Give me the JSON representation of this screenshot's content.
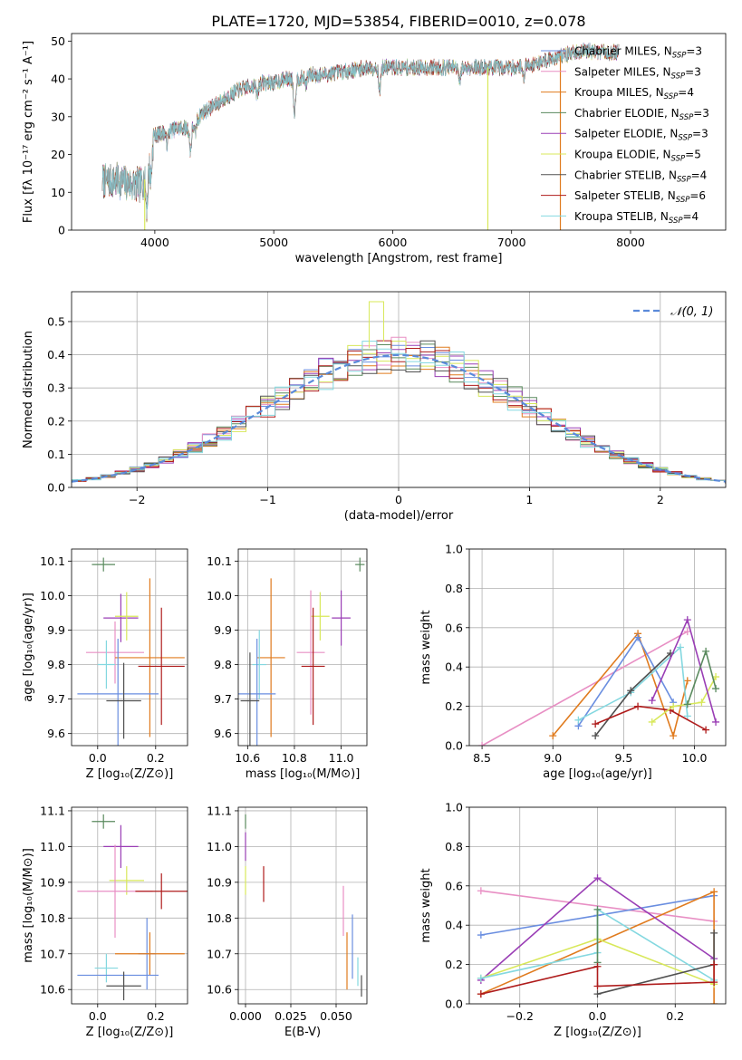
{
  "figure": {
    "title": "PLATE=1720, MJD=53854, FIBERID=0010, z=0.078"
  },
  "colors": {
    "Chabrier MILES": "#6A8EE0",
    "Salpeter MILES": "#E88FC4",
    "Kroupa MILES": "#E07B1E",
    "Chabrier ELODIE": "#5A8A5E",
    "Salpeter ELODIE": "#9A3EB5",
    "Kroupa ELODIE": "#D8E85A",
    "Chabrier STELIB": "#505050",
    "Salpeter STELIB": "#AF1C1C",
    "Kroupa STELIB": "#84D8E0",
    "gauss": "#5A8ADA",
    "grid": "#b0b0b0"
  },
  "chart_data": [
    {
      "id": "spectrum",
      "type": "line",
      "title": "PLATE=1720, MJD=53854, FIBERID=0010, z=0.078",
      "xlabel": "wavelength [Angstrom, rest frame]",
      "ylabel": "Flux [fλ 10⁻¹⁷ erg cm⁻² s⁻¹ A⁻¹]",
      "xlim": [
        3300,
        8800
      ],
      "ylim": [
        0,
        52
      ],
      "xticks": [
        4000,
        5000,
        6000,
        7000,
        8000
      ],
      "yticks": [
        0,
        10,
        20,
        30,
        40,
        50
      ],
      "grid": false,
      "legend_position": "top-right",
      "legend": [
        {
          "label": "Chabrier MILES, N",
          "sub": "SSP",
          "n": "=3",
          "model": "Chabrier MILES"
        },
        {
          "label": "Salpeter MILES, N",
          "sub": "SSP",
          "n": "=3",
          "model": "Salpeter MILES"
        },
        {
          "label": "Kroupa MILES, N",
          "sub": "SSP",
          "n": "=4",
          "model": "Kroupa MILES"
        },
        {
          "label": "Chabrier ELODIE, N",
          "sub": "SSP",
          "n": "=3",
          "model": "Chabrier ELODIE"
        },
        {
          "label": "Salpeter ELODIE, N",
          "sub": "SSP",
          "n": "=3",
          "model": "Salpeter ELODIE"
        },
        {
          "label": "Kroupa ELODIE, N",
          "sub": "SSP",
          "n": "=5",
          "model": "Kroupa ELODIE"
        },
        {
          "label": "Chabrier STELIB, N",
          "sub": "SSP",
          "n": "=4",
          "model": "Chabrier STELIB"
        },
        {
          "label": "Salpeter STELIB, N",
          "sub": "SSP",
          "n": "=6",
          "model": "Salpeter STELIB"
        },
        {
          "label": "Kroupa STELIB, N",
          "sub": "SSP",
          "n": "=4",
          "model": "Kroupa STELIB"
        }
      ],
      "continuum_knots": [
        [
          3560,
          13
        ],
        [
          3700,
          13
        ],
        [
          3800,
          12
        ],
        [
          3880,
          12
        ],
        [
          3930,
          14
        ],
        [
          3990,
          25
        ],
        [
          4100,
          26
        ],
        [
          4200,
          27
        ],
        [
          4300,
          27
        ],
        [
          4400,
          31
        ],
        [
          4500,
          33
        ],
        [
          4600,
          35
        ],
        [
          4700,
          37
        ],
        [
          4800,
          38
        ],
        [
          4900,
          39
        ],
        [
          5000,
          39
        ],
        [
          5100,
          40
        ],
        [
          5200,
          40
        ],
        [
          5300,
          41
        ],
        [
          5400,
          41
        ],
        [
          5600,
          42
        ],
        [
          5800,
          43
        ],
        [
          6000,
          43
        ],
        [
          6200,
          43
        ],
        [
          6400,
          43
        ],
        [
          6600,
          43
        ],
        [
          6800,
          43
        ],
        [
          7000,
          43
        ],
        [
          7200,
          44
        ],
        [
          7400,
          46
        ],
        [
          7600,
          47.5
        ],
        [
          7800,
          47
        ],
        [
          7900,
          47
        ]
      ],
      "absorptions": [
        [
          3933,
          8
        ],
        [
          3968,
          7
        ],
        [
          4102,
          3
        ],
        [
          4300,
          6
        ],
        [
          4340,
          3
        ],
        [
          4861,
          3
        ],
        [
          5175,
          9
        ],
        [
          5270,
          2
        ],
        [
          5890,
          6
        ],
        [
          6563,
          4
        ],
        [
          7100,
          3
        ]
      ],
      "spikes": [
        {
          "x": 6800,
          "model": "Kroupa ELODIE"
        },
        {
          "x": 7410,
          "model": "Kroupa MILES"
        },
        {
          "x": 3915,
          "model": "Kroupa ELODIE"
        }
      ]
    },
    {
      "id": "residuals",
      "type": "histogram",
      "xlabel": "(data-model)/error",
      "ylabel": "Normed distribution",
      "xlim": [
        -2.5,
        2.5
      ],
      "ylim": [
        0,
        0.59
      ],
      "xticks": [
        -2,
        -1,
        0,
        1,
        2
      ],
      "yticks": [
        0.0,
        0.1,
        0.2,
        0.3,
        0.4,
        0.5
      ],
      "grid": true,
      "legend_position": "top-right",
      "gauss_label": "𝒩(0, 1)",
      "bin_edges": [
        -2.5,
        2.5
      ],
      "bin_width": 0.1111,
      "spike": {
        "x": -0.17,
        "y": 0.56,
        "model": "Kroupa ELODIE"
      }
    },
    {
      "id": "age_vs_Z",
      "type": "scatter-errorbar",
      "xlabel": "Z [log₁₀(Z/Z⊙)]",
      "ylabel": "age  [log₁₀(age/yr)]",
      "xlim": [
        -0.09,
        0.31
      ],
      "ylim": [
        9.565,
        10.135
      ],
      "xticks": [
        0.0,
        0.2
      ],
      "yticks": [
        9.6,
        9.7,
        9.8,
        9.9,
        10.0,
        10.1
      ],
      "grid": true,
      "points": [
        {
          "model": "Chabrier ELODIE",
          "x": 0.02,
          "xerr": 0.04,
          "y": 10.09,
          "yerr": 0.02
        },
        {
          "model": "Salpeter ELODIE",
          "x": 0.08,
          "xerr": 0.06,
          "y": 9.935,
          "yerr": 0.07
        },
        {
          "model": "Kroupa ELODIE",
          "x": 0.1,
          "xerr": 0.04,
          "y": 9.94,
          "yerr": 0.07
        },
        {
          "model": "Salpeter MILES",
          "x": 0.06,
          "xerr": 0.1,
          "y": 9.835,
          "yerr": 0.09
        },
        {
          "model": "Kroupa MILES",
          "x": 0.18,
          "xerr": 0.12,
          "y": 9.82,
          "yerr": 0.23
        },
        {
          "model": "Kroupa STELIB",
          "x": 0.03,
          "xerr": 0.03,
          "y": 9.8,
          "yerr": 0.07
        },
        {
          "model": "Salpeter STELIB",
          "x": 0.22,
          "xerr": 0.08,
          "y": 9.795,
          "yerr": 0.17
        },
        {
          "model": "Chabrier MILES",
          "x": 0.07,
          "xerr": 0.14,
          "y": 9.715,
          "yerr": 0.16
        },
        {
          "model": "Chabrier STELIB",
          "x": 0.09,
          "xerr": 0.06,
          "y": 9.695,
          "yerr": 0.11
        }
      ]
    },
    {
      "id": "age_vs_mass",
      "type": "scatter-errorbar",
      "xlabel": "mass [log₁₀(M/M⊙)]",
      "ylabel": "",
      "xlim": [
        10.56,
        11.11
      ],
      "ylim": [
        9.565,
        10.135
      ],
      "xticks": [
        10.6,
        10.8,
        11.0
      ],
      "yticks": [
        9.6,
        9.7,
        9.8,
        9.9,
        10.0,
        10.1
      ],
      "grid": true,
      "points": [
        {
          "model": "Chabrier ELODIE",
          "x": 11.08,
          "xerr": 0.02,
          "y": 10.09,
          "yerr": 0.02
        },
        {
          "model": "Salpeter ELODIE",
          "x": 11.0,
          "xerr": 0.04,
          "y": 9.935,
          "yerr": 0.08
        },
        {
          "model": "Kroupa ELODIE",
          "x": 10.91,
          "xerr": 0.04,
          "y": 9.94,
          "yerr": 0.07
        },
        {
          "model": "Salpeter MILES",
          "x": 10.87,
          "xerr": 0.06,
          "y": 9.835,
          "yerr": 0.18
        },
        {
          "model": "Kroupa MILES",
          "x": 10.7,
          "xerr": 0.06,
          "y": 9.82,
          "yerr": 0.23
        },
        {
          "model": "Kroupa STELIB",
          "x": 10.65,
          "xerr": 0.03,
          "y": 9.8,
          "yerr": 0.1
        },
        {
          "model": "Salpeter STELIB",
          "x": 10.88,
          "xerr": 0.05,
          "y": 9.795,
          "yerr": 0.17
        },
        {
          "model": "Chabrier MILES",
          "x": 10.64,
          "xerr": 0.08,
          "y": 9.715,
          "yerr": 0.16
        },
        {
          "model": "Chabrier STELIB",
          "x": 10.61,
          "xerr": 0.04,
          "y": 9.695,
          "yerr": 0.14
        }
      ]
    },
    {
      "id": "weight_vs_age",
      "type": "line",
      "xlabel": "age  [log₁₀(age/yr)]",
      "ylabel": "mass weight",
      "xlim": [
        8.41,
        10.22
      ],
      "ylim": [
        0,
        1
      ],
      "xticks": [
        8.5,
        9.0,
        9.5,
        10.0
      ],
      "yticks": [
        0.0,
        0.2,
        0.4,
        0.6,
        0.8,
        1.0
      ],
      "grid": true,
      "series": [
        {
          "model": "Salpeter MILES",
          "x": [
            8.5,
            9.95
          ],
          "y": [
            0.0,
            0.58
          ]
        },
        {
          "model": "Kroupa MILES",
          "x": [
            9.0,
            9.6,
            9.85,
            9.95
          ],
          "y": [
            0.05,
            0.57,
            0.05,
            0.33
          ]
        },
        {
          "model": "Chabrier MILES",
          "x": [
            9.18,
            9.6,
            9.85
          ],
          "y": [
            0.1,
            0.55,
            0.22
          ]
        },
        {
          "model": "Kroupa STELIB",
          "x": [
            9.18,
            9.55,
            9.9,
            9.95
          ],
          "y": [
            0.13,
            0.27,
            0.5,
            0.15
          ]
        },
        {
          "model": "Chabrier STELIB",
          "x": [
            9.3,
            9.55,
            9.83
          ],
          "y": [
            0.05,
            0.28,
            0.47
          ]
        },
        {
          "model": "Salpeter STELIB",
          "x": [
            9.3,
            9.6,
            9.83,
            10.08
          ],
          "y": [
            0.11,
            0.2,
            0.18,
            0.08
          ]
        },
        {
          "model": "Kroupa ELODIE",
          "x": [
            9.7,
            9.85,
            10.05,
            10.15
          ],
          "y": [
            0.12,
            0.2,
            0.22,
            0.35
          ]
        },
        {
          "model": "Salpeter ELODIE",
          "x": [
            9.7,
            9.95,
            10.15
          ],
          "y": [
            0.23,
            0.64,
            0.12
          ]
        },
        {
          "model": "Chabrier ELODIE",
          "x": [
            9.95,
            10.08,
            10.15
          ],
          "y": [
            0.21,
            0.48,
            0.29
          ]
        }
      ]
    },
    {
      "id": "mass_vs_Z",
      "type": "scatter-errorbar",
      "xlabel": "Z [log₁₀(Z/Z⊙)]",
      "ylabel": "mass [log₁₀(M/M⊙)]",
      "xlim": [
        -0.09,
        0.31
      ],
      "ylim": [
        10.56,
        11.11
      ],
      "xticks": [
        0.0,
        0.2
      ],
      "yticks": [
        10.6,
        10.7,
        10.8,
        10.9,
        11.0,
        11.1
      ],
      "grid": true,
      "points": [
        {
          "model": "Chabrier ELODIE",
          "x": 0.02,
          "xerr": 0.04,
          "y": 11.07,
          "yerr": 0.02
        },
        {
          "model": "Salpeter ELODIE",
          "x": 0.08,
          "xerr": 0.06,
          "y": 11.0,
          "yerr": 0.06
        },
        {
          "model": "Kroupa ELODIE",
          "x": 0.1,
          "xerr": 0.06,
          "y": 10.905,
          "yerr": 0.04
        },
        {
          "model": "Salpeter MILES",
          "x": 0.06,
          "xerr": 0.13,
          "y": 10.875,
          "yerr": 0.13
        },
        {
          "model": "Salpeter STELIB",
          "x": 0.22,
          "xerr": 0.09,
          "y": 10.875,
          "yerr": 0.05
        },
        {
          "model": "Chabrier MILES",
          "x": 0.17,
          "xerr": 0.03,
          "y": 10.7,
          "yerr": 0.1
        },
        {
          "model": "Kroupa MILES",
          "x": 0.18,
          "xerr": 0.12,
          "y": 10.7,
          "yerr": 0.06
        },
        {
          "model": "Kroupa STELIB",
          "x": 0.03,
          "xerr": 0.04,
          "y": 10.66,
          "yerr": 0.04
        },
        {
          "model": "Chabrier MILES",
          "x": 0.07,
          "xerr": 0.14,
          "y": 10.64,
          "yerr": 0.0
        },
        {
          "model": "Chabrier STELIB",
          "x": 0.09,
          "xerr": 0.06,
          "y": 10.61,
          "yerr": 0.04
        }
      ]
    },
    {
      "id": "mass_vs_ebv",
      "type": "scatter-errorbar",
      "xlabel": "E(B-V)",
      "ylabel": "",
      "xlim": [
        -0.004,
        0.067
      ],
      "ylim": [
        10.56,
        11.11
      ],
      "xticks": [
        0.0,
        0.025,
        0.05
      ],
      "xtick_labels": [
        "0.000",
        "0.025",
        "0.050"
      ],
      "yticks": [
        10.6,
        10.7,
        10.8,
        10.9,
        11.0,
        11.1
      ],
      "grid": true,
      "points": [
        {
          "model": "Chabrier ELODIE",
          "x": 0.0,
          "xerr": 0,
          "y": 11.07,
          "yerr": 0.02
        },
        {
          "model": "Salpeter ELODIE",
          "x": 0.0,
          "xerr": 0,
          "y": 11.0,
          "yerr": 0.04
        },
        {
          "model": "Kroupa ELODIE",
          "x": 0.0,
          "xerr": 0,
          "y": 10.905,
          "yerr": 0.04
        },
        {
          "model": "Salpeter STELIB",
          "x": 0.01,
          "xerr": 0,
          "y": 10.895,
          "yerr": 0.05
        },
        {
          "model": "Salpeter MILES",
          "x": 0.054,
          "xerr": 0,
          "y": 10.82,
          "yerr": 0.07
        },
        {
          "model": "Kroupa MILES",
          "x": 0.056,
          "xerr": 0,
          "y": 10.68,
          "yerr": 0.08
        },
        {
          "model": "Chabrier MILES",
          "x": 0.059,
          "xerr": 0,
          "y": 10.72,
          "yerr": 0.09
        },
        {
          "model": "Kroupa STELIB",
          "x": 0.062,
          "xerr": 0,
          "y": 10.65,
          "yerr": 0.04
        },
        {
          "model": "Chabrier STELIB",
          "x": 0.064,
          "xerr": 0,
          "y": 10.61,
          "yerr": 0.03
        }
      ]
    },
    {
      "id": "weight_vs_Z",
      "type": "line",
      "xlabel": "Z [log₁₀(Z/Z⊙)]",
      "ylabel": "mass weight",
      "xlim": [
        -0.33,
        0.33
      ],
      "ylim": [
        0,
        1
      ],
      "xticks": [
        -0.2,
        0.0,
        0.2
      ],
      "xtick_labels": [
        "−0.2",
        "0.0",
        "0.2"
      ],
      "yticks": [
        0.0,
        0.2,
        0.4,
        0.6,
        0.8,
        1.0
      ],
      "grid": true,
      "series": [
        {
          "model": "Salpeter MILES",
          "x": [
            -0.3,
            0.3
          ],
          "y": [
            0.575,
            0.42
          ]
        },
        {
          "model": "Chabrier MILES",
          "x": [
            -0.3,
            0.0,
            0.3
          ],
          "y": [
            0.35,
            0.45,
            0.55
          ]
        },
        {
          "model": "Kroupa MILES",
          "x": [
            -0.3,
            0.3,
            0.3
          ],
          "y": [
            0.05,
            0.57,
            0.0
          ]
        },
        {
          "model": "Salpeter ELODIE",
          "x": [
            -0.3,
            0.0,
            0.3
          ],
          "y": [
            0.12,
            0.64,
            0.23
          ]
        },
        {
          "model": "Kroupa ELODIE",
          "x": [
            -0.3,
            0.0,
            0.3
          ],
          "y": [
            0.13,
            0.33,
            0.1
          ]
        },
        {
          "model": "Kroupa STELIB",
          "x": [
            -0.3,
            0.0,
            0.0,
            0.3
          ],
          "y": [
            0.13,
            0.26,
            0.48,
            0.12
          ]
        },
        {
          "model": "Chabrier ELODIE",
          "x": [
            0.0,
            0.0
          ],
          "y": [
            0.21,
            0.48
          ]
        },
        {
          "model": "Chabrier STELIB",
          "x": [
            0.0,
            0.3,
            0.3
          ],
          "y": [
            0.05,
            0.2,
            0.36
          ]
        },
        {
          "model": "Salpeter STELIB",
          "x": [
            -0.3,
            0.0,
            0.0,
            0.3,
            0.3
          ],
          "y": [
            0.05,
            0.19,
            0.09,
            0.11,
            0.2
          ]
        }
      ]
    }
  ]
}
